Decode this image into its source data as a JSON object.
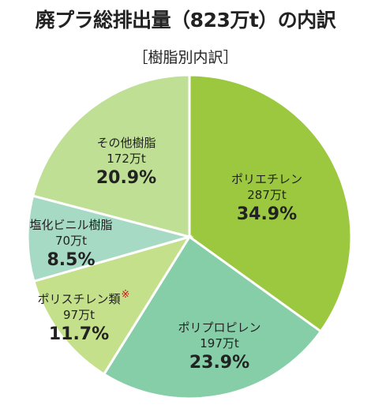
{
  "title": "廃プラ総排出量（823万t）の内訳",
  "subtitle": "［樹脂別内訳］",
  "chart_data": {
    "type": "pie",
    "title": "廃プラ総排出量（823万t）の内訳",
    "subtitle": "［樹脂別内訳］",
    "unit": "万t",
    "total": 823,
    "slices": [
      {
        "name": "ポリエチレン",
        "amount": "287万t",
        "value": 287,
        "percent": "34.9%",
        "pct": 34.9,
        "color": "#9cc840"
      },
      {
        "name": "ポリプロピレン",
        "amount": "197万t",
        "value": 197,
        "percent": "23.9%",
        "pct": 23.9,
        "color": "#86cea8"
      },
      {
        "name": "ポリスチレン類",
        "note": "※",
        "amount": "97万t",
        "value": 97,
        "percent": "11.7%",
        "pct": 11.7,
        "color": "#c4e08a"
      },
      {
        "name": "塩化ビニル樹脂",
        "amount": "70万t",
        "value": 70,
        "percent": "8.5%",
        "pct": 8.5,
        "color": "#a7dac4"
      },
      {
        "name": "その他樹脂",
        "amount": "172万t",
        "value": 172,
        "percent": "20.9%",
        "pct": 20.9,
        "color": "#bfdf94"
      }
    ]
  }
}
